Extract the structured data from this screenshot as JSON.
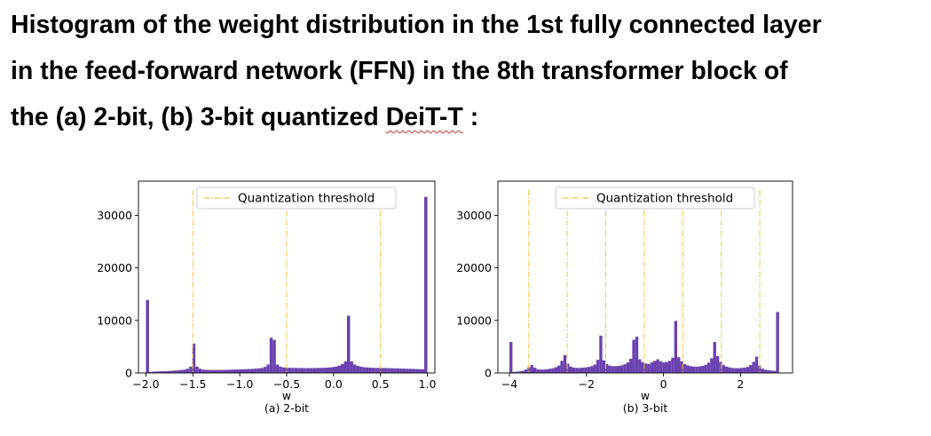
{
  "heading": {
    "line1": "Histogram of the weight distribution in the 1st fully connected layer",
    "line2": "in the feed-forward network (FFN) in the 8th transformer block of",
    "line3_prefix": "the (a) 2-bit, (b) 3-bit quantized ",
    "line3_model": "DeiT-T",
    "line3_suffix": " :"
  },
  "colors": {
    "bar": "#6a41b0",
    "threshold": "#f5c242",
    "legend_border": "#cccccc",
    "axis": "#000000"
  },
  "chart_data": [
    {
      "type": "bar",
      "subtitle": "(a) 2-bit",
      "xlabel": "w",
      "ylabel": "",
      "xlim": [
        -2.08,
        1.08
      ],
      "ylim": [
        0,
        36500
      ],
      "xticks": [
        -2.0,
        -1.5,
        -1.0,
        -0.5,
        0.0,
        0.5,
        1.0
      ],
      "xtick_labels": [
        "−2.0",
        "−1.5",
        "−1.0",
        "−0.5",
        "0.0",
        "0.5",
        "1.0"
      ],
      "yticks": [
        0,
        10000,
        20000,
        30000
      ],
      "ytick_labels": [
        "0",
        "10000",
        "20000",
        "30000"
      ],
      "legend": {
        "label": "Quantization threshold",
        "position": "top-center"
      },
      "thresholds": [
        -1.5,
        -0.5,
        0.5
      ],
      "bin_range": [
        -2.0,
        1.0
      ],
      "counts": [
        13900,
        200,
        250,
        280,
        300,
        330,
        360,
        390,
        420,
        460,
        500,
        560,
        650,
        800,
        1200,
        5600,
        1200,
        800,
        650,
        600,
        580,
        570,
        560,
        560,
        570,
        580,
        600,
        620,
        640,
        660,
        680,
        700,
        720,
        750,
        780,
        820,
        870,
        950,
        1150,
        1600,
        6700,
        6300,
        1600,
        1200,
        1050,
        1000,
        980,
        960,
        950,
        940,
        930,
        920,
        920,
        930,
        940,
        950,
        960,
        980,
        1000,
        1050,
        1120,
        1200,
        1400,
        1700,
        2200,
        10900,
        2200,
        1600,
        1350,
        1200,
        1100,
        1050,
        1000,
        980,
        960,
        950,
        940,
        930,
        920,
        900,
        880,
        860,
        840,
        820,
        800,
        780,
        760,
        740,
        720,
        700,
        33500
      ]
    },
    {
      "type": "bar",
      "subtitle": "(b) 3-bit",
      "xlabel": "w",
      "ylabel": "",
      "xlim": [
        -4.3,
        3.35
      ],
      "ylim": [
        0,
        36500
      ],
      "xticks": [
        -4,
        -2,
        0,
        2
      ],
      "xtick_labels": [
        "−4",
        "−2",
        "0",
        "2"
      ],
      "yticks": [
        0,
        10000,
        20000,
        30000
      ],
      "ytick_labels": [
        "0",
        "10000",
        "20000",
        "30000"
      ],
      "legend": {
        "label": "Quantization threshold",
        "position": "top-center"
      },
      "thresholds": [
        -3.5,
        -2.5,
        -1.5,
        -0.5,
        0.5,
        1.5,
        2.5
      ],
      "bin_range": [
        -4.0,
        3.0
      ],
      "counts": [
        5900,
        200,
        250,
        300,
        400,
        650,
        1100,
        1500,
        1000,
        700,
        650,
        650,
        700,
        800,
        900,
        1100,
        1400,
        2300,
        3400,
        1800,
        1200,
        1000,
        950,
        950,
        1000,
        1050,
        1150,
        1300,
        1600,
        2500,
        7100,
        2400,
        1700,
        1400,
        1300,
        1300,
        1350,
        1450,
        1650,
        2000,
        2700,
        6300,
        6900,
        2600,
        2000,
        1800,
        1700,
        2000,
        2300,
        2600,
        2200,
        2000,
        2100,
        2300,
        2900,
        9900,
        3000,
        2200,
        1700,
        1450,
        1300,
        1200,
        1200,
        1250,
        1350,
        1550,
        1950,
        2800,
        5900,
        3200,
        2100,
        1500,
        1200,
        1050,
        950,
        900,
        900,
        950,
        1000,
        1150,
        1500,
        2100,
        3100,
        1400,
        800,
        600,
        500,
        450,
        400,
        11600
      ]
    }
  ]
}
